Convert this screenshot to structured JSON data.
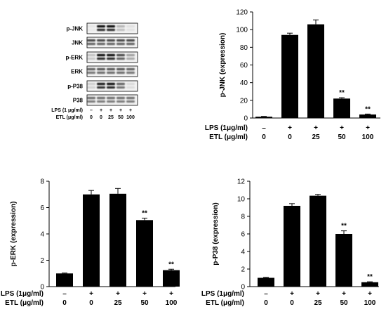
{
  "blot": {
    "rows": [
      "p-JNK",
      "JNK",
      "p-ERK",
      "ERK",
      "p-P38",
      "P38"
    ],
    "lps_label": "LPS (1 μg/ml)",
    "etl_label": "ETL (μg/ml)",
    "lps_values": [
      "–",
      "+",
      "+",
      "+",
      "+"
    ],
    "etl_values": [
      "0",
      "0",
      "25",
      "50",
      "100"
    ]
  },
  "chart_data": [
    {
      "type": "bar",
      "ylabel": "p-JNK (expression)",
      "ylim": [
        0,
        120
      ],
      "yticks": [
        0,
        20,
        40,
        60,
        80,
        100,
        120
      ],
      "lps_label": "LPS (1μg/ml)",
      "etl_label": "ETL (μg/ml)",
      "lps_values": [
        "–",
        "+",
        "+",
        "+",
        "+"
      ],
      "etl_values": [
        "0",
        "0",
        "25",
        "50",
        "100"
      ],
      "values": [
        1.5,
        94,
        106,
        22,
        4
      ],
      "errors": [
        0.3,
        2,
        5,
        1,
        0.5
      ],
      "significance": [
        "",
        "",
        "",
        "**",
        "**"
      ]
    },
    {
      "type": "bar",
      "ylabel": "p-ERK (expression)",
      "ylim": [
        0,
        8
      ],
      "yticks": [
        0,
        2,
        4,
        6,
        8
      ],
      "lps_label": "LPS (1μg/ml)",
      "etl_label": "ETL (μg/ml)",
      "lps_values": [
        "–",
        "+",
        "+",
        "+",
        "+"
      ],
      "etl_values": [
        "0",
        "0",
        "25",
        "50",
        "100"
      ],
      "values": [
        1.0,
        7.0,
        7.05,
        5.05,
        1.25
      ],
      "errors": [
        0.03,
        0.3,
        0.4,
        0.15,
        0.07
      ],
      "significance": [
        "",
        "",
        "",
        "**",
        "**"
      ]
    },
    {
      "type": "bar",
      "ylabel": "p-P38 (expression)",
      "ylim": [
        0,
        12
      ],
      "yticks": [
        0,
        2,
        4,
        6,
        8,
        10,
        12
      ],
      "lps_label": "LPS (1μg/ml)",
      "etl_label": "ETL (μg/ml)",
      "lps_values": [
        "–",
        "+",
        "+",
        "+",
        "+"
      ],
      "etl_values": [
        "0",
        "0",
        "25",
        "50",
        "100"
      ],
      "values": [
        1.0,
        9.2,
        10.35,
        6.0,
        0.5
      ],
      "errors": [
        0.05,
        0.25,
        0.15,
        0.35,
        0.05
      ],
      "significance": [
        "",
        "",
        "",
        "**",
        "**"
      ]
    }
  ]
}
